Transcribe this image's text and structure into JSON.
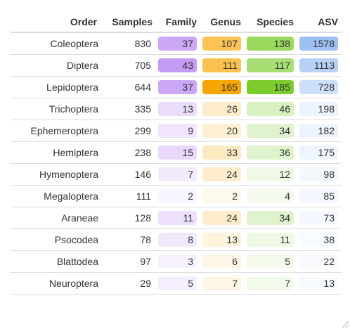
{
  "columns": [
    "Order",
    "Samples",
    "Family",
    "Genus",
    "Species",
    "ASV"
  ],
  "rows": [
    {
      "order": "Coleoptera",
      "samples": 830,
      "family": 37,
      "genus": 107,
      "species": 138,
      "asv": 1578
    },
    {
      "order": "Diptera",
      "samples": 705,
      "family": 43,
      "genus": 111,
      "species": 117,
      "asv": 1113
    },
    {
      "order": "Lepidoptera",
      "samples": 644,
      "family": 37,
      "genus": 165,
      "species": 185,
      "asv": 728
    },
    {
      "order": "Trichoptera",
      "samples": 335,
      "family": 13,
      "genus": 26,
      "species": 46,
      "asv": 198
    },
    {
      "order": "Ephemeroptera",
      "samples": 299,
      "family": 9,
      "genus": 20,
      "species": 34,
      "asv": 182
    },
    {
      "order": "Hemiptera",
      "samples": 238,
      "family": 15,
      "genus": 33,
      "species": 36,
      "asv": 175
    },
    {
      "order": "Hymenoptera",
      "samples": 146,
      "family": 7,
      "genus": 24,
      "species": 12,
      "asv": 98
    },
    {
      "order": "Megaloptera",
      "samples": 111,
      "family": 2,
      "genus": 2,
      "species": 4,
      "asv": 85
    },
    {
      "order": "Araneae",
      "samples": 128,
      "family": 11,
      "genus": 24,
      "species": 34,
      "asv": 73
    },
    {
      "order": "Psocodea",
      "samples": 78,
      "family": 8,
      "genus": 13,
      "species": 11,
      "asv": 38
    },
    {
      "order": "Blattodea",
      "samples": 97,
      "family": 3,
      "genus": 6,
      "species": 5,
      "asv": 22
    },
    {
      "order": "Neuroptera",
      "samples": 29,
      "family": 5,
      "genus": 7,
      "species": 7,
      "asv": 13
    }
  ],
  "colors": {
    "family": "#c39bf4",
    "genus": "#f7a600",
    "species": "#7ccd2b",
    "asv": "#9cc0f2"
  }
}
